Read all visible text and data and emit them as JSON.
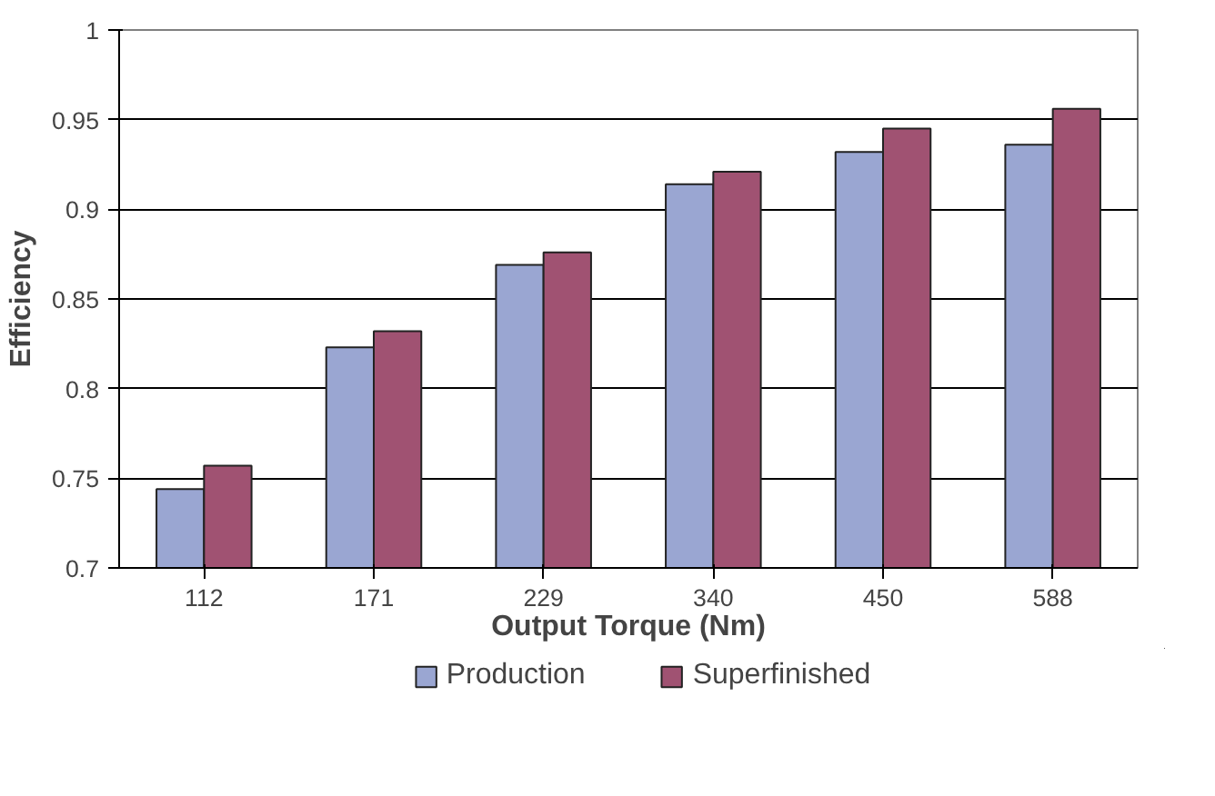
{
  "chart_data": {
    "type": "bar",
    "xlabel": "Output Torque (Nm)",
    "ylabel": "Efficiency",
    "categories": [
      "112",
      "171",
      "229",
      "340",
      "450",
      "588"
    ],
    "series": [
      {
        "name": "Production",
        "color": "#9aa6d2",
        "values": [
          0.744,
          0.823,
          0.869,
          0.914,
          0.932,
          0.936
        ]
      },
      {
        "name": "Superfinished",
        "color": "#a05272",
        "values": [
          0.757,
          0.832,
          0.876,
          0.921,
          0.945,
          0.956
        ]
      }
    ],
    "ylim": [
      0.7,
      1
    ],
    "yticks": [
      0.7,
      0.75,
      0.8,
      0.85,
      0.9,
      0.95,
      1
    ],
    "grid": "y",
    "legend": "bottom"
  }
}
